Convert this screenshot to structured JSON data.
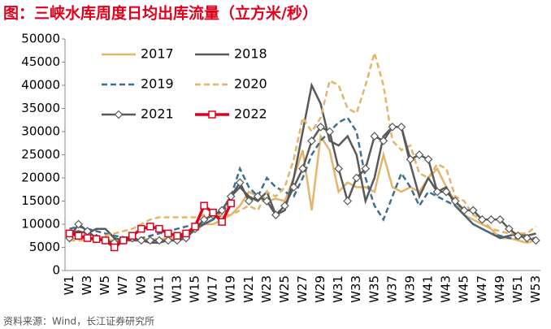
{
  "chart_data": {
    "type": "line",
    "title": "图：三峡水库周度日均出库流量（立方米/秒）",
    "source": "资料来源：Wind，长江证券研究所",
    "categories": [
      "W1",
      null,
      "W3",
      null,
      "W5",
      null,
      "W7",
      null,
      "W9",
      null,
      "W11",
      null,
      "W13",
      null,
      "W15",
      null,
      "W17",
      null,
      "W19",
      null,
      "W21",
      null,
      "W23",
      null,
      "W25",
      null,
      "W27",
      null,
      "W29",
      null,
      "W31",
      null,
      "W33",
      null,
      "W35",
      null,
      "W37",
      null,
      "W39",
      null,
      "W41",
      null,
      "W43",
      null,
      "W45",
      null,
      "W47",
      null,
      "W49",
      null,
      "W51",
      null,
      "W53"
    ],
    "ylim": [
      0,
      50000
    ],
    "yticks": [
      0,
      5000,
      10000,
      15000,
      20000,
      25000,
      30000,
      35000,
      40000,
      45000,
      50000
    ],
    "legend": "top-left",
    "series": [
      {
        "name": "2017",
        "color": "#e3b56b",
        "dash": false,
        "marker": null,
        "values": [
          7000,
          6800,
          6700,
          6600,
          6600,
          6500,
          6500,
          6600,
          6700,
          6800,
          6800,
          6900,
          7000,
          7500,
          8500,
          10000,
          10000,
          11000,
          12000,
          14000,
          17000,
          16000,
          15000,
          15500,
          15000,
          20000,
          26000,
          13000,
          29000,
          26000,
          17000,
          19000,
          18000,
          18000,
          17000,
          25000,
          18000,
          17000,
          18000,
          17000,
          20000,
          22000,
          18000,
          15000,
          12000,
          11000,
          10000,
          9000,
          7000,
          7000,
          6500,
          6000,
          6500
        ]
      },
      {
        "name": "2018",
        "color": "#595959",
        "dash": false,
        "marker": null,
        "values": [
          8000,
          8500,
          8000,
          9000,
          9000,
          7000,
          6500,
          6500,
          6500,
          6000,
          6000,
          6500,
          6500,
          8000,
          9000,
          10000,
          11000,
          13000,
          16000,
          18000,
          16000,
          15000,
          17000,
          12000,
          13000,
          20000,
          30000,
          40000,
          36000,
          28000,
          27000,
          29000,
          25000,
          15000,
          20000,
          29000,
          31000,
          31000,
          23000,
          16000,
          20000,
          17000,
          18000,
          14000,
          12000,
          10000,
          9000,
          8000,
          7000,
          7500,
          8000,
          7500,
          8000
        ]
      },
      {
        "name": "2019",
        "color": "#3f6f8f",
        "dash": true,
        "marker": null,
        "values": [
          9000,
          9500,
          9000,
          8500,
          8000,
          7500,
          7200,
          7000,
          7000,
          7500,
          8000,
          8500,
          9000,
          9500,
          10000,
          10000,
          11000,
          12000,
          16000,
          22000,
          18000,
          16000,
          20000,
          18000,
          17000,
          16000,
          20000,
          25000,
          28000,
          30000,
          32000,
          33000,
          30000,
          20000,
          14000,
          11000,
          16000,
          21000,
          18000,
          14000,
          17000,
          16000,
          15000,
          14000,
          12000,
          10000,
          9000,
          8000,
          7500,
          7000,
          7000,
          7000,
          7000
        ]
      },
      {
        "name": "2020",
        "color": "#e3b56b",
        "dash": true,
        "marker": null,
        "values": [
          6500,
          6500,
          6500,
          7000,
          7500,
          8000,
          8500,
          9000,
          10000,
          11000,
          11500,
          11500,
          11500,
          11500,
          11500,
          12000,
          12000,
          12000,
          12000,
          13000,
          14000,
          13000,
          17000,
          16000,
          18000,
          24000,
          33000,
          30000,
          33000,
          41000,
          40000,
          35000,
          34000,
          40000,
          47000,
          40000,
          28000,
          26000,
          27000,
          21000,
          20000,
          23000,
          22000,
          16000,
          15000,
          12000,
          11000,
          9000,
          8500,
          8000,
          8000,
          8000,
          9500
        ]
      },
      {
        "name": "2021",
        "color": "#595959",
        "dash": false,
        "marker": "diamond",
        "values": [
          7000,
          10000,
          8500,
          7000,
          6500,
          6000,
          6500,
          7000,
          6500,
          6500,
          6500,
          6500,
          6500,
          7000,
          9000,
          11000,
          12000,
          13000,
          16000,
          19000,
          15000,
          16000,
          15000,
          12000,
          14000,
          18000,
          22000,
          28000,
          31000,
          30000,
          22000,
          15000,
          20000,
          22000,
          29000,
          28000,
          31000,
          31000,
          24000,
          25000,
          24000,
          17000,
          17000,
          15000,
          13000,
          13000,
          11000,
          11000,
          11000,
          9000,
          7500,
          7000,
          6500
        ]
      },
      {
        "name": "2022",
        "color": "#e0001b",
        "dash": false,
        "marker": "square",
        "values": [
          8000,
          7500,
          7000,
          6800,
          6500,
          5000,
          6500,
          7500,
          9000,
          9500,
          9000,
          8000,
          7500,
          8000,
          9500,
          14000,
          12500,
          10500,
          14500,
          null,
          null,
          null,
          null,
          null,
          null,
          null,
          null,
          null,
          null,
          null,
          null,
          null,
          null,
          null,
          null,
          null,
          null,
          null,
          null,
          null,
          null,
          null,
          null,
          null,
          null,
          null,
          null,
          null,
          null,
          null,
          null,
          null,
          null
        ]
      }
    ]
  }
}
